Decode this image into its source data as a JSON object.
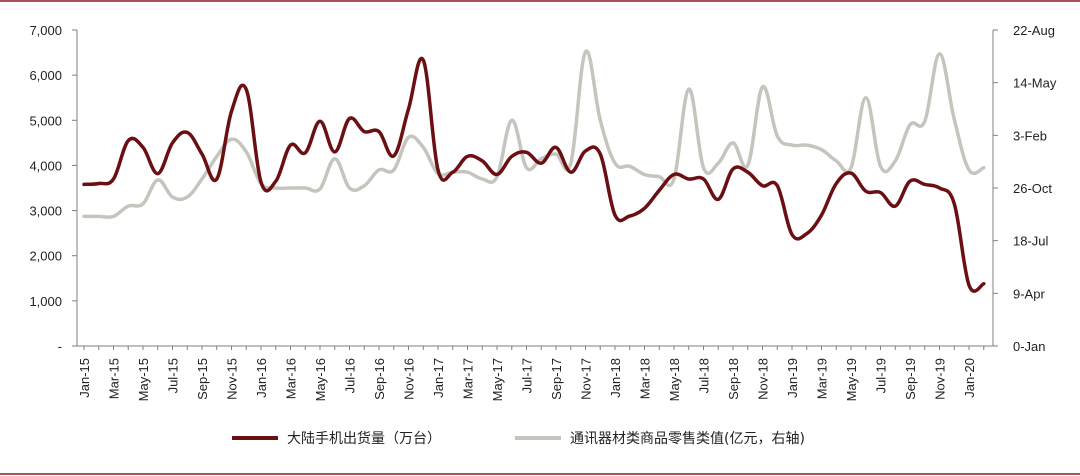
{
  "chart_data": {
    "type": "line",
    "title": "",
    "xlabel": "",
    "ylabel": "",
    "y2label": "",
    "grid": false,
    "legend_position": "bottom",
    "ylim": [
      0,
      7000
    ],
    "y_ticks": [
      "-",
      "1,000",
      "2,000",
      "3,000",
      "4,000",
      "5,000",
      "6,000",
      "7,000"
    ],
    "y2_ticks": [
      "0-Jan",
      "9-Apr",
      "18-Jul",
      "26-Oct",
      "3-Feb",
      "14-May",
      "22-Aug"
    ],
    "x_tick_labels": [
      "Jan-15",
      "Mar-15",
      "May-15",
      "Jul-15",
      "Sep-15",
      "Nov-15",
      "Jan-16",
      "Mar-16",
      "May-16",
      "Jul-16",
      "Sep-16",
      "Nov-16",
      "Jan-17",
      "Mar-17",
      "May-17",
      "Jul-17",
      "Sep-17",
      "Nov-17",
      "Jan-18",
      "Mar-18",
      "May-18",
      "Jul-18",
      "Sep-18",
      "Nov-18",
      "Jan-19",
      "Mar-19",
      "May-19",
      "Jul-19",
      "Sep-19",
      "Nov-19",
      "Jan-20"
    ],
    "x": [
      "Jan-15",
      "Feb-15",
      "Mar-15",
      "Apr-15",
      "May-15",
      "Jun-15",
      "Jul-15",
      "Aug-15",
      "Sep-15",
      "Oct-15",
      "Nov-15",
      "Dec-15",
      "Jan-16",
      "Feb-16",
      "Mar-16",
      "Apr-16",
      "May-16",
      "Jun-16",
      "Jul-16",
      "Aug-16",
      "Sep-16",
      "Oct-16",
      "Nov-16",
      "Dec-16",
      "Jan-17",
      "Feb-17",
      "Mar-17",
      "Apr-17",
      "May-17",
      "Jun-17",
      "Jul-17",
      "Aug-17",
      "Sep-17",
      "Oct-17",
      "Nov-17",
      "Dec-17",
      "Jan-18",
      "Feb-18",
      "Mar-18",
      "Apr-18",
      "May-18",
      "Jun-18",
      "Jul-18",
      "Aug-18",
      "Sep-18",
      "Oct-18",
      "Nov-18",
      "Dec-18",
      "Jan-19",
      "Feb-19",
      "Mar-19",
      "Apr-19",
      "May-19",
      "Jun-19",
      "Jul-19",
      "Aug-19",
      "Sep-19",
      "Oct-19",
      "Nov-19",
      "Dec-19",
      "Jan-20",
      "Feb-20"
    ],
    "series": [
      {
        "name": "大陆手机出货量（万台）",
        "axis": "left",
        "color": "#6b0f12",
        "values": [
          3580,
          3600,
          3700,
          4550,
          4400,
          3820,
          4500,
          4730,
          4250,
          3700,
          5200,
          5680,
          3630,
          3650,
          4450,
          4280,
          4980,
          4300,
          5040,
          4750,
          4750,
          4210,
          5250,
          6330,
          3900,
          3850,
          4200,
          4100,
          3800,
          4200,
          4290,
          4050,
          4400,
          3850,
          4320,
          4250,
          2900,
          2880,
          3050,
          3450,
          3800,
          3700,
          3700,
          3250,
          3920,
          3850,
          3550,
          3550,
          2470,
          2490,
          2900,
          3600,
          3830,
          3430,
          3400,
          3100,
          3650,
          3580,
          3500,
          3150,
          1350,
          1380
        ]
      },
      {
        "name": "通讯器材类商品零售类值(亿元，右轴)",
        "axis": "right",
        "color": "#c5c5be",
        "values": [
          2870,
          2870,
          2870,
          3100,
          3150,
          3680,
          3300,
          3300,
          3700,
          4200,
          4580,
          4300,
          3600,
          3500,
          3500,
          3500,
          3480,
          4150,
          3500,
          3550,
          3900,
          3900,
          4620,
          4400,
          3820,
          3850,
          3850,
          3700,
          3750,
          5000,
          3950,
          4150,
          4250,
          4050,
          6520,
          5000,
          4050,
          3980,
          3800,
          3750,
          3700,
          5690,
          3950,
          4050,
          4500,
          4000,
          5740,
          4650,
          4450,
          4450,
          4350,
          4100,
          3950,
          5500,
          3980,
          4100,
          4900,
          4980,
          6470,
          5020,
          3900,
          3950
        ]
      }
    ]
  }
}
